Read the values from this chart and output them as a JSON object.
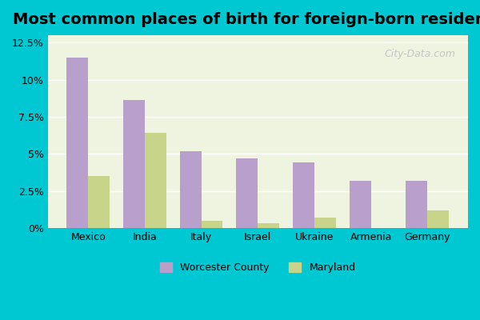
{
  "title": "Most common places of birth for foreign-born residents",
  "categories": [
    "Mexico",
    "India",
    "Italy",
    "Israel",
    "Ukraine",
    "Armenia",
    "Germany"
  ],
  "worcester_values": [
    11.5,
    8.6,
    5.2,
    4.7,
    4.4,
    3.2,
    3.2
  ],
  "maryland_values": [
    3.5,
    6.4,
    0.5,
    0.35,
    0.7,
    0.0,
    1.2
  ],
  "worcester_color": "#b89fcc",
  "maryland_color": "#c8d48a",
  "ylim": [
    0,
    13.0
  ],
  "yticks": [
    0,
    2.5,
    5.0,
    7.5,
    10.0,
    12.5
  ],
  "ytick_labels": [
    "0%",
    "2.5%",
    "5%",
    "7.5%",
    "10%",
    "12.5%"
  ],
  "legend_worcester": "Worcester County",
  "legend_maryland": "Maryland",
  "background_outer": "#00c8d2",
  "background_plot": "#eef4e0",
  "bar_width": 0.38,
  "title_fontsize": 14
}
